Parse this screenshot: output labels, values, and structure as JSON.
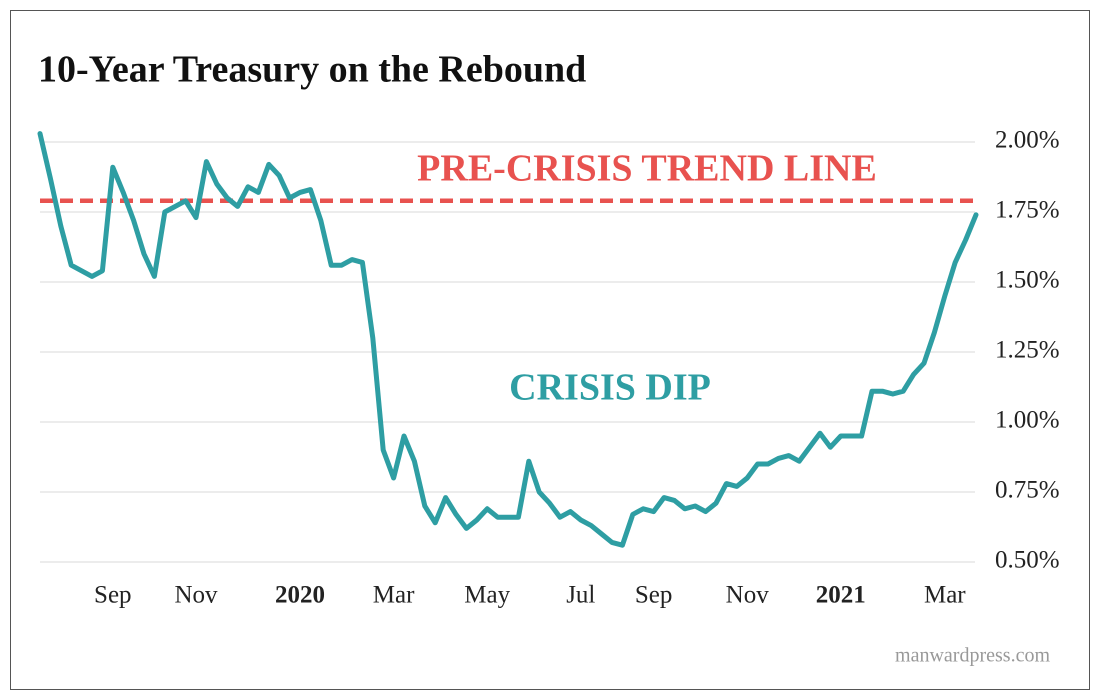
{
  "chart_data": {
    "type": "line",
    "title": "10-Year Treasury on the Rebound",
    "categories": [
      null,
      null,
      null,
      null,
      null,
      null,
      null,
      "Sep",
      null,
      null,
      null,
      null,
      null,
      null,
      null,
      "Nov",
      null,
      null,
      null,
      null,
      null,
      null,
      null,
      null,
      null,
      "2020",
      null,
      null,
      null,
      null,
      null,
      null,
      null,
      null,
      "Mar",
      null,
      null,
      null,
      null,
      null,
      null,
      null,
      null,
      "May",
      null,
      null,
      null,
      null,
      null,
      null,
      null,
      null,
      "Jul",
      null,
      null,
      null,
      null,
      null,
      null,
      "Sep",
      null,
      null,
      null,
      null,
      null,
      null,
      null,
      null,
      "Nov",
      null,
      null,
      null,
      null,
      null,
      null,
      null,
      null,
      "2021",
      null,
      null,
      null,
      null,
      null,
      null,
      null,
      null,
      null,
      "Mar",
      null,
      null,
      null
    ],
    "values": [
      2.03,
      1.87,
      1.7,
      1.56,
      1.54,
      1.52,
      1.54,
      1.91,
      1.82,
      1.72,
      1.6,
      1.52,
      1.75,
      1.77,
      1.79,
      1.73,
      1.93,
      1.85,
      1.8,
      1.77,
      1.84,
      1.82,
      1.92,
      1.88,
      1.8,
      1.82,
      1.83,
      1.72,
      1.56,
      1.56,
      1.58,
      1.57,
      1.3,
      0.9,
      0.8,
      0.95,
      0.86,
      0.7,
      0.64,
      0.73,
      0.67,
      0.62,
      0.65,
      0.69,
      0.66,
      0.66,
      0.66,
      0.86,
      0.75,
      0.71,
      0.66,
      0.68,
      0.65,
      0.63,
      0.6,
      0.57,
      0.56,
      0.67,
      0.69,
      0.68,
      0.73,
      0.72,
      0.69,
      0.7,
      0.68,
      0.71,
      0.78,
      0.77,
      0.8,
      0.85,
      0.85,
      0.87,
      0.88,
      0.86,
      0.91,
      0.96,
      0.91,
      0.95,
      0.95,
      0.95,
      1.11,
      1.11,
      1.1,
      1.11,
      1.17,
      1.21,
      1.32,
      1.45,
      1.57,
      1.65,
      1.74
    ],
    "color": "#2e9ea3",
    "ylim": [
      0.5,
      2.05
    ],
    "yticks": [
      {
        "value": 0.5,
        "label": "0.50%"
      },
      {
        "value": 0.75,
        "label": "0.75%"
      },
      {
        "value": 1.0,
        "label": "1.00%"
      },
      {
        "value": 1.25,
        "label": "1.25%"
      },
      {
        "value": 1.5,
        "label": "1.50%"
      },
      {
        "value": 1.75,
        "label": "1.75%"
      },
      {
        "value": 2.0,
        "label": "2.00%"
      }
    ],
    "grid": true,
    "reference_line": {
      "value": 1.79,
      "label": "PRE-CRISIS TREND LINE",
      "color": "#e8524f"
    },
    "annotation": "CRISIS DIP",
    "source": "manwardpress.com"
  }
}
